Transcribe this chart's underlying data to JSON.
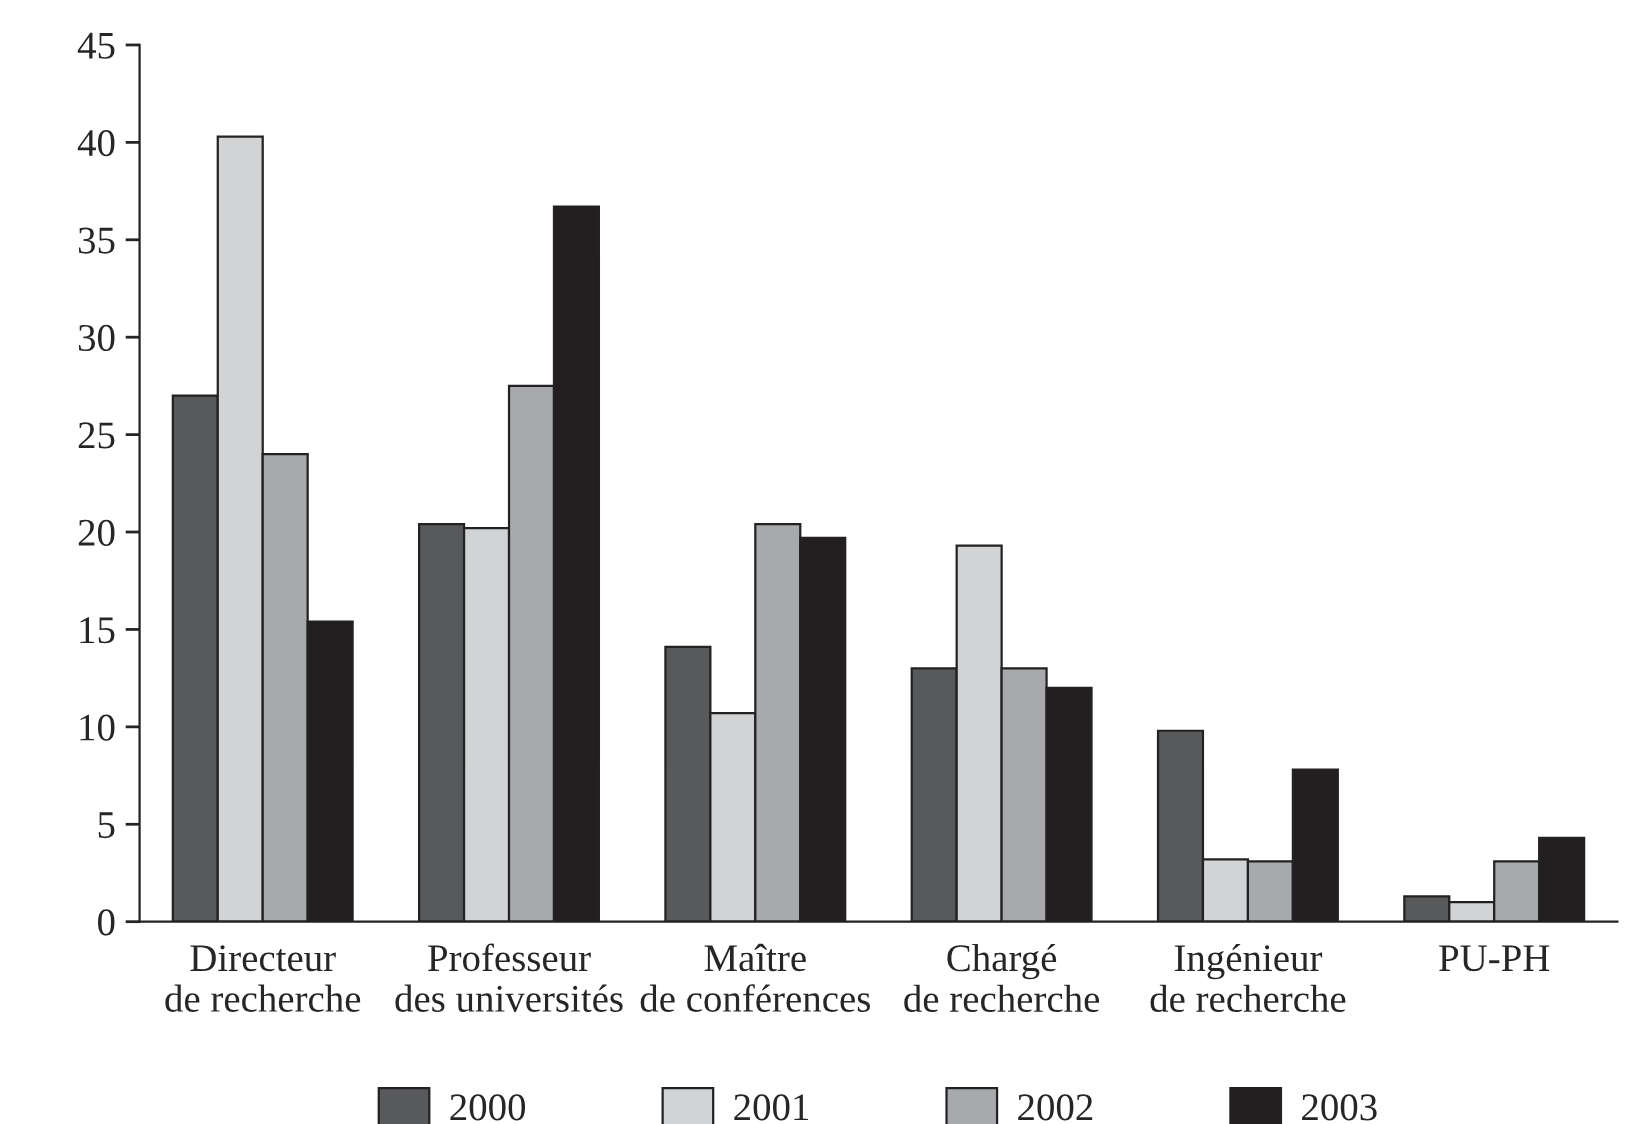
{
  "chart_data": {
    "type": "bar",
    "categories": [
      "Directeur\nde recherche",
      "Professeur\ndes universités",
      "Maître\nde conférences",
      "Chargé\nde recherche",
      "Ingénieur\nde recherche",
      "PU-PH"
    ],
    "series": [
      {
        "name": "2000",
        "color": "#58595b",
        "values": [
          27.0,
          20.4,
          14.1,
          13.0,
          9.8,
          1.3
        ]
      },
      {
        "name": "2001",
        "color": "#d1d3d4",
        "values": [
          40.3,
          20.2,
          10.7,
          19.3,
          3.2,
          1.0
        ]
      },
      {
        "name": "2002",
        "color": "#a7a9ac",
        "values": [
          24.0,
          27.5,
          20.4,
          13.0,
          3.1,
          3.1
        ]
      },
      {
        "name": "2003",
        "color": "#231f20",
        "values": [
          15.4,
          36.7,
          19.7,
          12.0,
          7.8,
          4.3
        ]
      }
    ],
    "ylim": [
      0,
      45
    ],
    "yticks": [
      0,
      5,
      10,
      15,
      20,
      25,
      30,
      35,
      40,
      45
    ],
    "grid": false,
    "legend": "bottom"
  }
}
